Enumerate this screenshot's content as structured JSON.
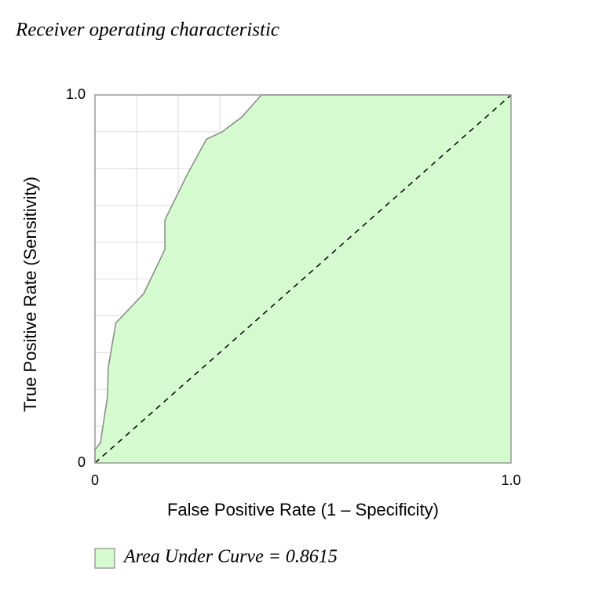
{
  "chart_data": {
    "type": "area",
    "title": "Receiver operating characteristic",
    "x_label": "False Positive Rate (1 – Specificity)",
    "y_label": "True Positive Rate (Sensitivity)",
    "xlim": [
      0,
      1
    ],
    "ylim": [
      0,
      1
    ],
    "xticks": [
      0,
      {
        "value": 1,
        "label": "1.0"
      }
    ],
    "yticks": [
      0,
      {
        "value": 1,
        "label": "1.0"
      }
    ],
    "grid_x": [
      0.1,
      0.2,
      0.3,
      0.4,
      0.5,
      0.6,
      0.7,
      0.8,
      0.9
    ],
    "grid_y": [
      0.1,
      0.2,
      0.3,
      0.4,
      0.5,
      0.6,
      0.7,
      0.8,
      0.9
    ],
    "grid": true,
    "series": [
      {
        "name": "Area Under Curve = 0.8615",
        "color": "#d6fad0",
        "line_color": "#888888",
        "x": [
          0,
          0,
          0.013,
          0.03,
          0.032,
          0.05,
          0.117,
          0.168,
          0.168,
          0.22,
          0.268,
          0.306,
          0.353,
          0.4,
          1
        ],
        "values": [
          0,
          0.036,
          0.055,
          0.18,
          0.26,
          0.38,
          0.46,
          0.58,
          0.66,
          0.78,
          0.88,
          0.9,
          0.94,
          1,
          1
        ]
      }
    ],
    "reference_line": {
      "x": [
        0,
        1
      ],
      "values": [
        0,
        1
      ],
      "color": "#000000",
      "dashed": true
    }
  }
}
